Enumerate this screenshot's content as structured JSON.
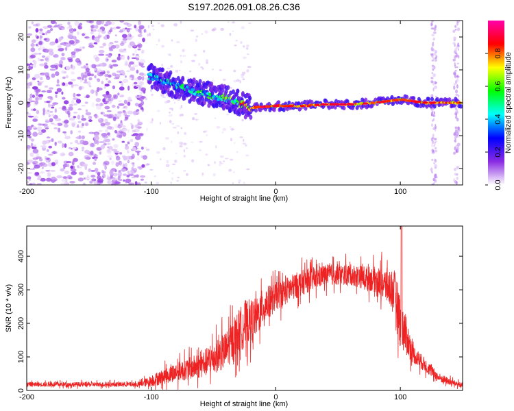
{
  "title": "S197.2026.091.08.26.C36",
  "chart_data": [
    {
      "type": "heatmap",
      "xlabel": "Height of straight line (km)",
      "ylabel": "Frequency (Hz)",
      "xlim": [
        -200,
        150
      ],
      "ylim": [
        -25,
        25
      ],
      "xticks": [
        -200,
        -100,
        0,
        100
      ],
      "yticks": [
        -20,
        -10,
        0,
        10,
        20
      ],
      "colorbar": {
        "label": "Normalized spectral amplitude",
        "range": [
          0.0,
          1.0
        ],
        "ticks": [
          "0.0",
          "0.2",
          "0.4",
          "0.6",
          "0.8"
        ],
        "colors": [
          "#ffffff",
          "#8a2be2",
          "#0000ff",
          "#00ffff",
          "#00ff00",
          "#ffff00",
          "#ff0000",
          "#ff00aa"
        ]
      },
      "ridge": [
        {
          "x": -100,
          "freq": 8,
          "amp": 0.4
        },
        {
          "x": -80,
          "freq": 5,
          "amp": 0.45
        },
        {
          "x": -60,
          "freq": 3,
          "amp": 0.5
        },
        {
          "x": -40,
          "freq": 1.5,
          "amp": 0.55
        },
        {
          "x": -20,
          "freq": -1.5,
          "amp": 0.85
        },
        {
          "x": 0,
          "freq": -1,
          "amp": 0.85
        },
        {
          "x": 20,
          "freq": -1,
          "amp": 0.85
        },
        {
          "x": 40,
          "freq": -0.5,
          "amp": 0.85
        },
        {
          "x": 60,
          "freq": -0.5,
          "amp": 0.85
        },
        {
          "x": 80,
          "freq": 0,
          "amp": 0.8
        },
        {
          "x": 100,
          "freq": 1,
          "amp": 0.8
        },
        {
          "x": 120,
          "freq": 0,
          "amp": 0.85
        },
        {
          "x": 140,
          "freq": 0,
          "amp": 0.85
        }
      ],
      "noise_region": {
        "x_from": -200,
        "x_to": -105,
        "amp": 0.12
      }
    },
    {
      "type": "line",
      "xlabel": "Height of straight line (km)",
      "ylabel": "SNR (10 * v/v)",
      "xlim": [
        -200,
        150
      ],
      "ylim": [
        0,
        490
      ],
      "xticks": [
        -200,
        -100,
        0,
        100
      ],
      "yticks": [
        0,
        100,
        200,
        300,
        400
      ],
      "series": [
        {
          "name": "SNR",
          "color": "#ee2222",
          "envelope": {
            "x": [
              -200,
              -110,
              -100,
              -80,
              -60,
              -40,
              -25,
              -15,
              -10,
              0,
              20,
              40,
              60,
              80,
              95,
              100,
              110,
              130,
              140,
              150
            ],
            "mean": [
              18,
              18,
              28,
              55,
              75,
              120,
              200,
              220,
              250,
              280,
              320,
              345,
              345,
              330,
              300,
              210,
              110,
              40,
              25,
              15
            ],
            "spread": [
              10,
              10,
              25,
              40,
              55,
              80,
              100,
              80,
              80,
              60,
              55,
              45,
              45,
              55,
              90,
              120,
              40,
              20,
              15,
              10
            ]
          },
          "peak": {
            "x": 101,
            "value": 490
          }
        }
      ]
    }
  ]
}
